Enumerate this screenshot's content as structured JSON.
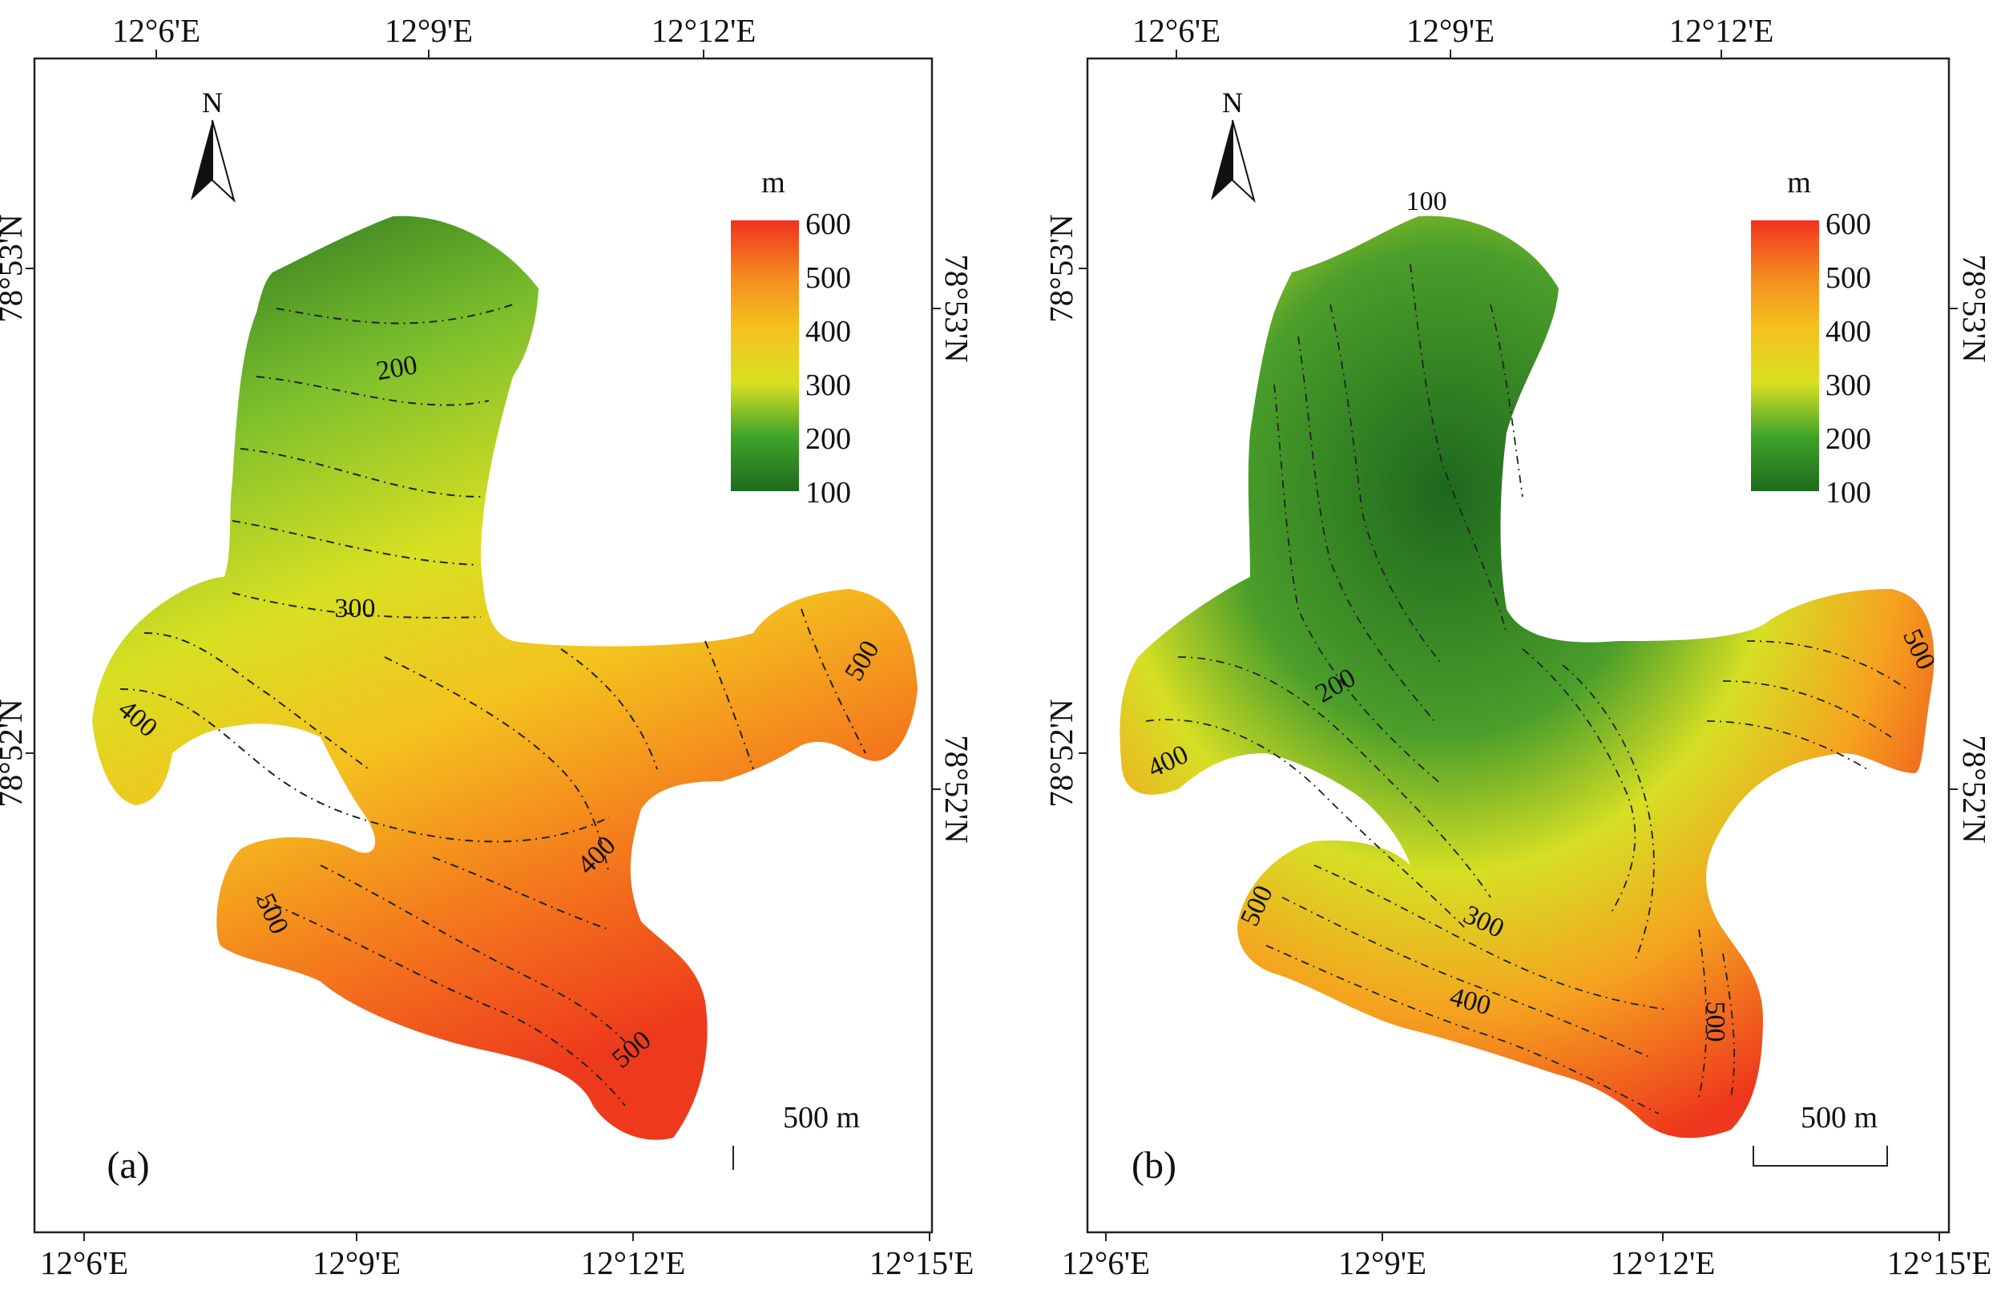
{
  "figure": {
    "panels": [
      {
        "id": "a",
        "panel_label": "(a)",
        "top_lon_ticks": [
          "12°6'E",
          "12°9'E",
          "12°12'E"
        ],
        "bottom_lon_ticks": [
          "12°6'E",
          "12°9'E",
          "12°12'E",
          "12°15'E"
        ],
        "left_lat_ticks": [
          "78°53'N",
          "78°52'N"
        ],
        "right_lat_ticks": [
          "78°53'N",
          "78°52'N"
        ],
        "north_label": "N",
        "legend": {
          "unit": "m",
          "values": [
            "600",
            "500",
            "400",
            "300",
            "200",
            "100"
          ]
        },
        "scale_bar": "500 m",
        "contour_labels": [
          "200",
          "300",
          "400",
          "500",
          "400",
          "500",
          "500"
        ]
      },
      {
        "id": "b",
        "panel_label": "(b)",
        "top_lon_ticks": [
          "12°6'E",
          "12°9'E",
          "12°12'E"
        ],
        "bottom_lon_ticks": [
          "12°6'E",
          "12°9'E",
          "12°12'E",
          "12°15'E"
        ],
        "left_lat_ticks": [
          "78°53'N",
          "78°52'N"
        ],
        "right_lat_ticks": [
          "78°53'N",
          "78°52'N"
        ],
        "north_label": "N",
        "legend": {
          "unit": "m",
          "values": [
            "600",
            "500",
            "400",
            "300",
            "200",
            "100"
          ]
        },
        "scale_bar": "500 m",
        "contour_labels": [
          "100",
          "200",
          "300",
          "400",
          "400",
          "500",
          "500",
          "500"
        ]
      }
    ],
    "colors": {
      "low": "#1e6b1e",
      "mid": "#d9e021",
      "high": "#f0321e"
    }
  }
}
